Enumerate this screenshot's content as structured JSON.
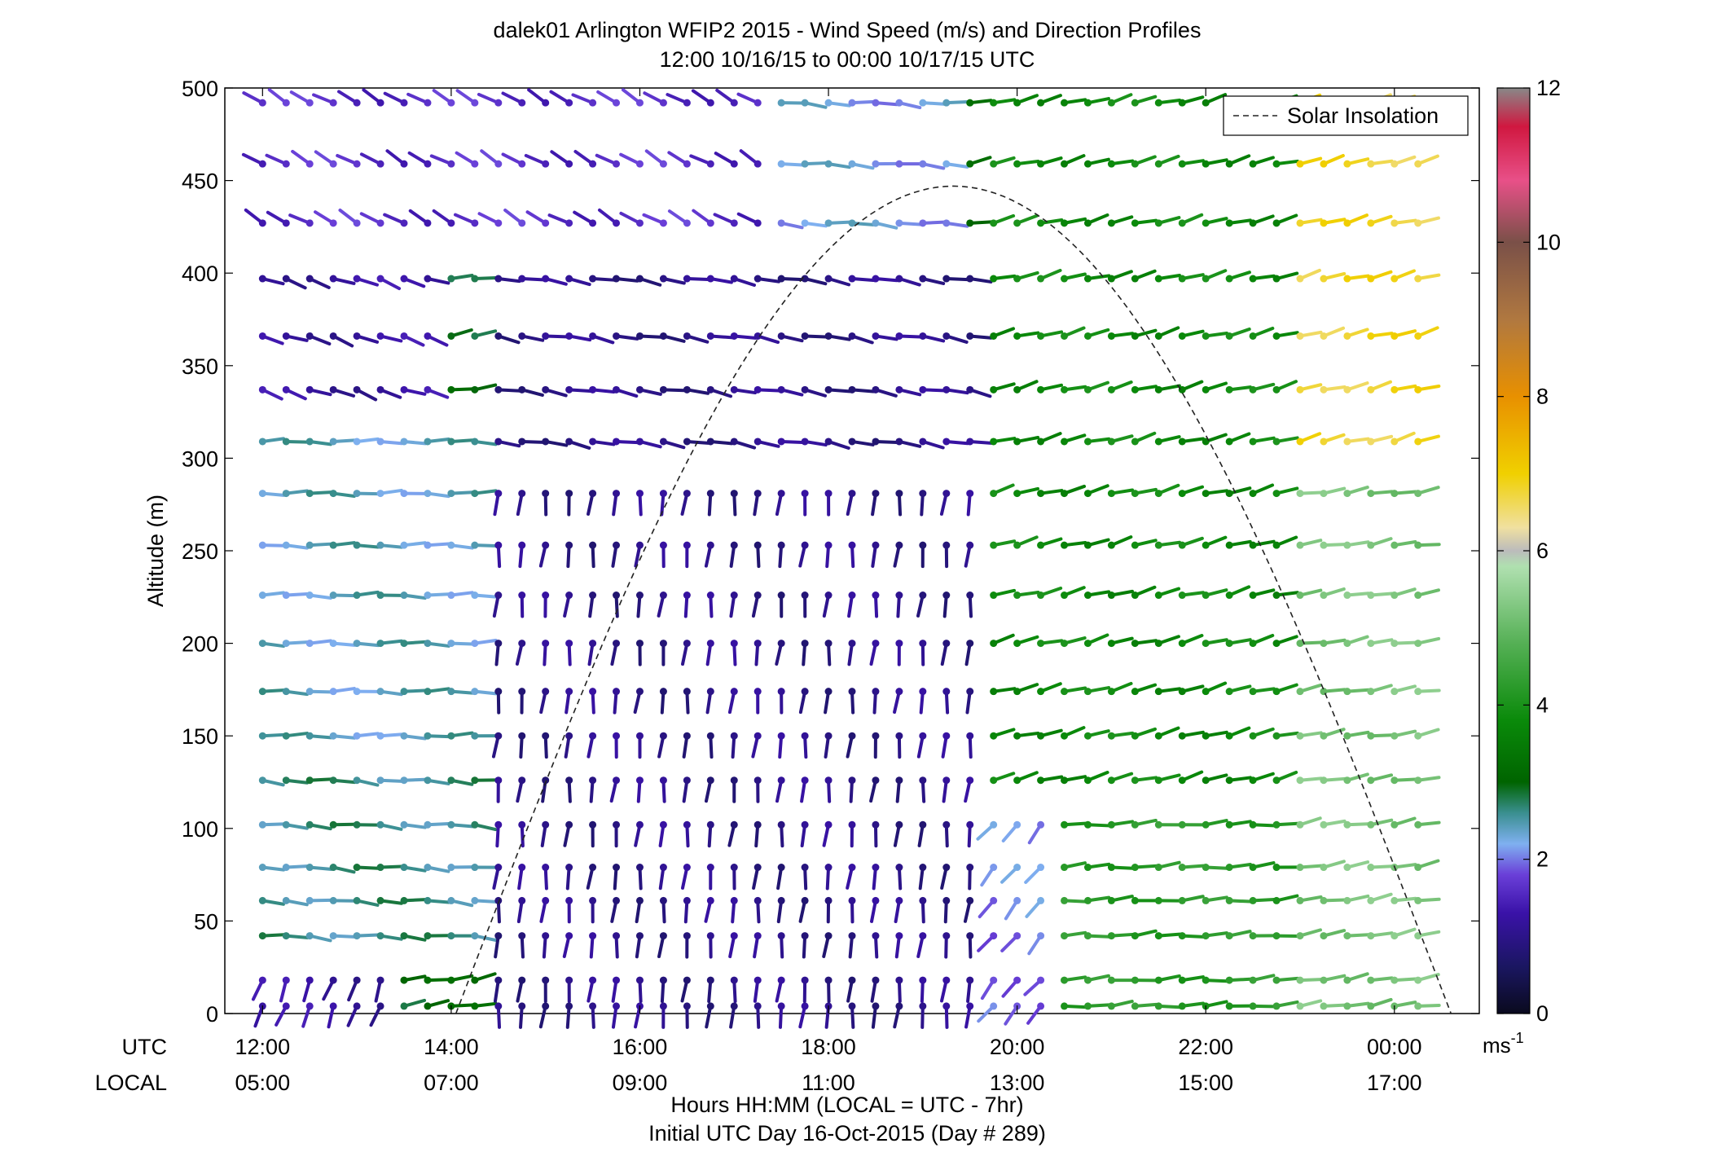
{
  "chart_data": {
    "type": "wind-barb-profile",
    "title": "dalek01 Arlington WFIP2 2015 - Wind Speed (m/s) and Direction Profiles",
    "subtitle": "12:00 10/16/15 to 00:00 10/17/15  UTC",
    "ylabel": "Altitude (m)",
    "xlabel": "Hours HH:MM  (LOCAL = UTC - 7hr)",
    "footer": "Initial UTC Day 16-Oct-2015 (Day # 289)",
    "row_labels": {
      "utc": "UTC",
      "local": "LOCAL"
    },
    "ylim": [
      0,
      500
    ],
    "yticks": [
      0,
      50,
      100,
      150,
      200,
      250,
      300,
      350,
      400,
      450,
      500
    ],
    "xlim_hours_utc": [
      11.6,
      24.9
    ],
    "xticks_utc": [
      12,
      14,
      16,
      18,
      20,
      22,
      24
    ],
    "xtick_labels_utc": [
      "12:00",
      "14:00",
      "16:00",
      "18:00",
      "20:00",
      "22:00",
      "00:00"
    ],
    "xtick_labels_local": [
      "05:00",
      "07:00",
      "09:00",
      "11:00",
      "13:00",
      "15:00",
      "17:00"
    ],
    "legend": {
      "label": "Solar Insolation",
      "position": "top-right"
    },
    "colorbar": {
      "min": 0,
      "max": 12,
      "ticks": [
        0,
        2,
        4,
        6,
        8,
        10,
        12
      ],
      "unit_base": "ms",
      "unit_exp": "-1"
    },
    "colormap_stops": [
      {
        "v": 0.0,
        "color": "#0a0a1e"
      },
      {
        "v": 0.6,
        "color": "#1a1660"
      },
      {
        "v": 1.3,
        "color": "#3a12a8"
      },
      {
        "v": 1.8,
        "color": "#6a3fd8"
      },
      {
        "v": 2.2,
        "color": "#7fb0f0"
      },
      {
        "v": 2.6,
        "color": "#3a8f90"
      },
      {
        "v": 3.0,
        "color": "#006400"
      },
      {
        "v": 3.8,
        "color": "#0a8a0a"
      },
      {
        "v": 4.8,
        "color": "#55b055"
      },
      {
        "v": 5.8,
        "color": "#b0e0b0"
      },
      {
        "v": 6.0,
        "color": "#bbbbbb"
      },
      {
        "v": 6.3,
        "color": "#f0e0a0"
      },
      {
        "v": 7.0,
        "color": "#f0d000"
      },
      {
        "v": 8.0,
        "color": "#e89000"
      },
      {
        "v": 9.0,
        "color": "#b07840"
      },
      {
        "v": 10.0,
        "color": "#7a5048"
      },
      {
        "v": 10.8,
        "color": "#e85088"
      },
      {
        "v": 11.5,
        "color": "#d01840"
      },
      {
        "v": 12.0,
        "color": "#888888"
      }
    ],
    "solar_insolation_curve": {
      "sunrise_utc": 14.05,
      "sunset_utc": 24.6,
      "peak_altitude_m": 447
    },
    "levels_m": [
      4,
      18,
      42,
      61,
      79,
      102,
      126,
      150,
      174,
      200,
      226,
      253,
      281,
      309,
      337,
      366,
      397,
      427,
      459,
      492
    ],
    "time_utc_start": 12.0,
    "time_step_hours": 0.25,
    "speed_grid_regions": [
      {
        "t0": 12.0,
        "t1": 13.5,
        "h0": 0,
        "h1": 40,
        "speed": 1.2,
        "dir": 200
      },
      {
        "t0": 12.0,
        "t1": 14.5,
        "h0": 40,
        "h1": 130,
        "speed": 2.6,
        "dir": 95
      },
      {
        "t0": 12.0,
        "t1": 14.5,
        "h0": 130,
        "h1": 330,
        "speed": 2.4,
        "dir": 90
      },
      {
        "t0": 12.0,
        "t1": 14.0,
        "h0": 330,
        "h1": 420,
        "speed": 1.2,
        "dir": 110
      },
      {
        "t0": 12.0,
        "t1": 17.4,
        "h0": 420,
        "h1": 500,
        "speed": 1.6,
        "dir": 300
      },
      {
        "t0": 14.5,
        "t1": 19.7,
        "h0": 0,
        "h1": 300,
        "speed": 1.0,
        "dir": 185
      },
      {
        "t0": 14.5,
        "t1": 19.7,
        "h0": 300,
        "h1": 420,
        "speed": 1.0,
        "dir": 100
      },
      {
        "t0": 17.4,
        "t1": 19.5,
        "h0": 420,
        "h1": 500,
        "speed": 2.2,
        "dir": 95
      },
      {
        "t0": 19.7,
        "t1": 20.5,
        "h0": 0,
        "h1": 120,
        "speed": 2.0,
        "dir": 220
      },
      {
        "t0": 19.7,
        "t1": 23.0,
        "h0": 120,
        "h1": 500,
        "speed": 3.8,
        "dir": 75
      },
      {
        "t0": 20.5,
        "t1": 23.0,
        "h0": 0,
        "h1": 120,
        "speed": 4.2,
        "dir": 85
      },
      {
        "t0": 23.0,
        "t1": 24.4,
        "h0": 0,
        "h1": 300,
        "speed": 5.2,
        "dir": 80
      },
      {
        "t0": 23.0,
        "t1": 24.4,
        "h0": 300,
        "h1": 500,
        "speed": 6.8,
        "dir": 75
      }
    ]
  }
}
